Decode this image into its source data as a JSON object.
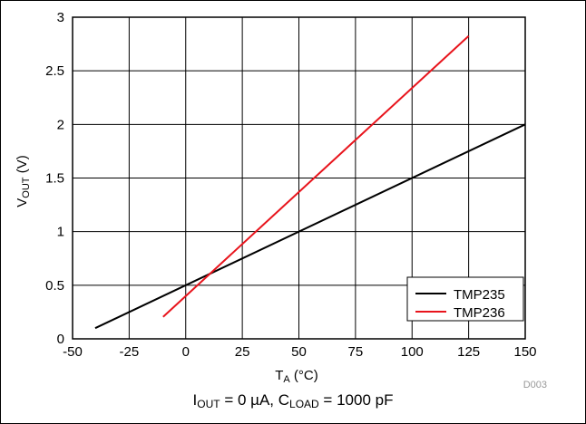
{
  "chart_data": {
    "type": "line",
    "title": "",
    "xlabel": "T_A (°C)",
    "ylabel": "V_OUT (V)",
    "xlim": [
      -50,
      150
    ],
    "ylim": [
      0,
      3
    ],
    "x_ticks": [
      -50,
      -25,
      0,
      25,
      50,
      75,
      100,
      125,
      150
    ],
    "y_ticks": [
      0,
      0.5,
      1,
      1.5,
      2,
      2.5,
      3
    ],
    "x_tick_labels": [
      "-50",
      "-25",
      "0",
      "25",
      "50",
      "75",
      "100",
      "125",
      "150"
    ],
    "y_tick_labels": [
      "0",
      "0.5",
      "1",
      "1.5",
      "2",
      "2.5",
      "3"
    ],
    "grid": true,
    "legend_position": "bottom-right",
    "series": [
      {
        "name": "TMP235",
        "color": "#000000",
        "x": [
          -40,
          150
        ],
        "y": [
          0.1,
          2.0
        ]
      },
      {
        "name": "TMP236",
        "color": "#e8141c",
        "x": [
          -10,
          125
        ],
        "y": [
          0.205,
          2.825
        ]
      }
    ],
    "figure_id": "D003"
  },
  "caption": {
    "i_label": "I",
    "i_sub": "OUT",
    "i_value": " = 0 µA, C",
    "c_sub": "LOAD",
    "c_value": " = 1000 pF"
  }
}
